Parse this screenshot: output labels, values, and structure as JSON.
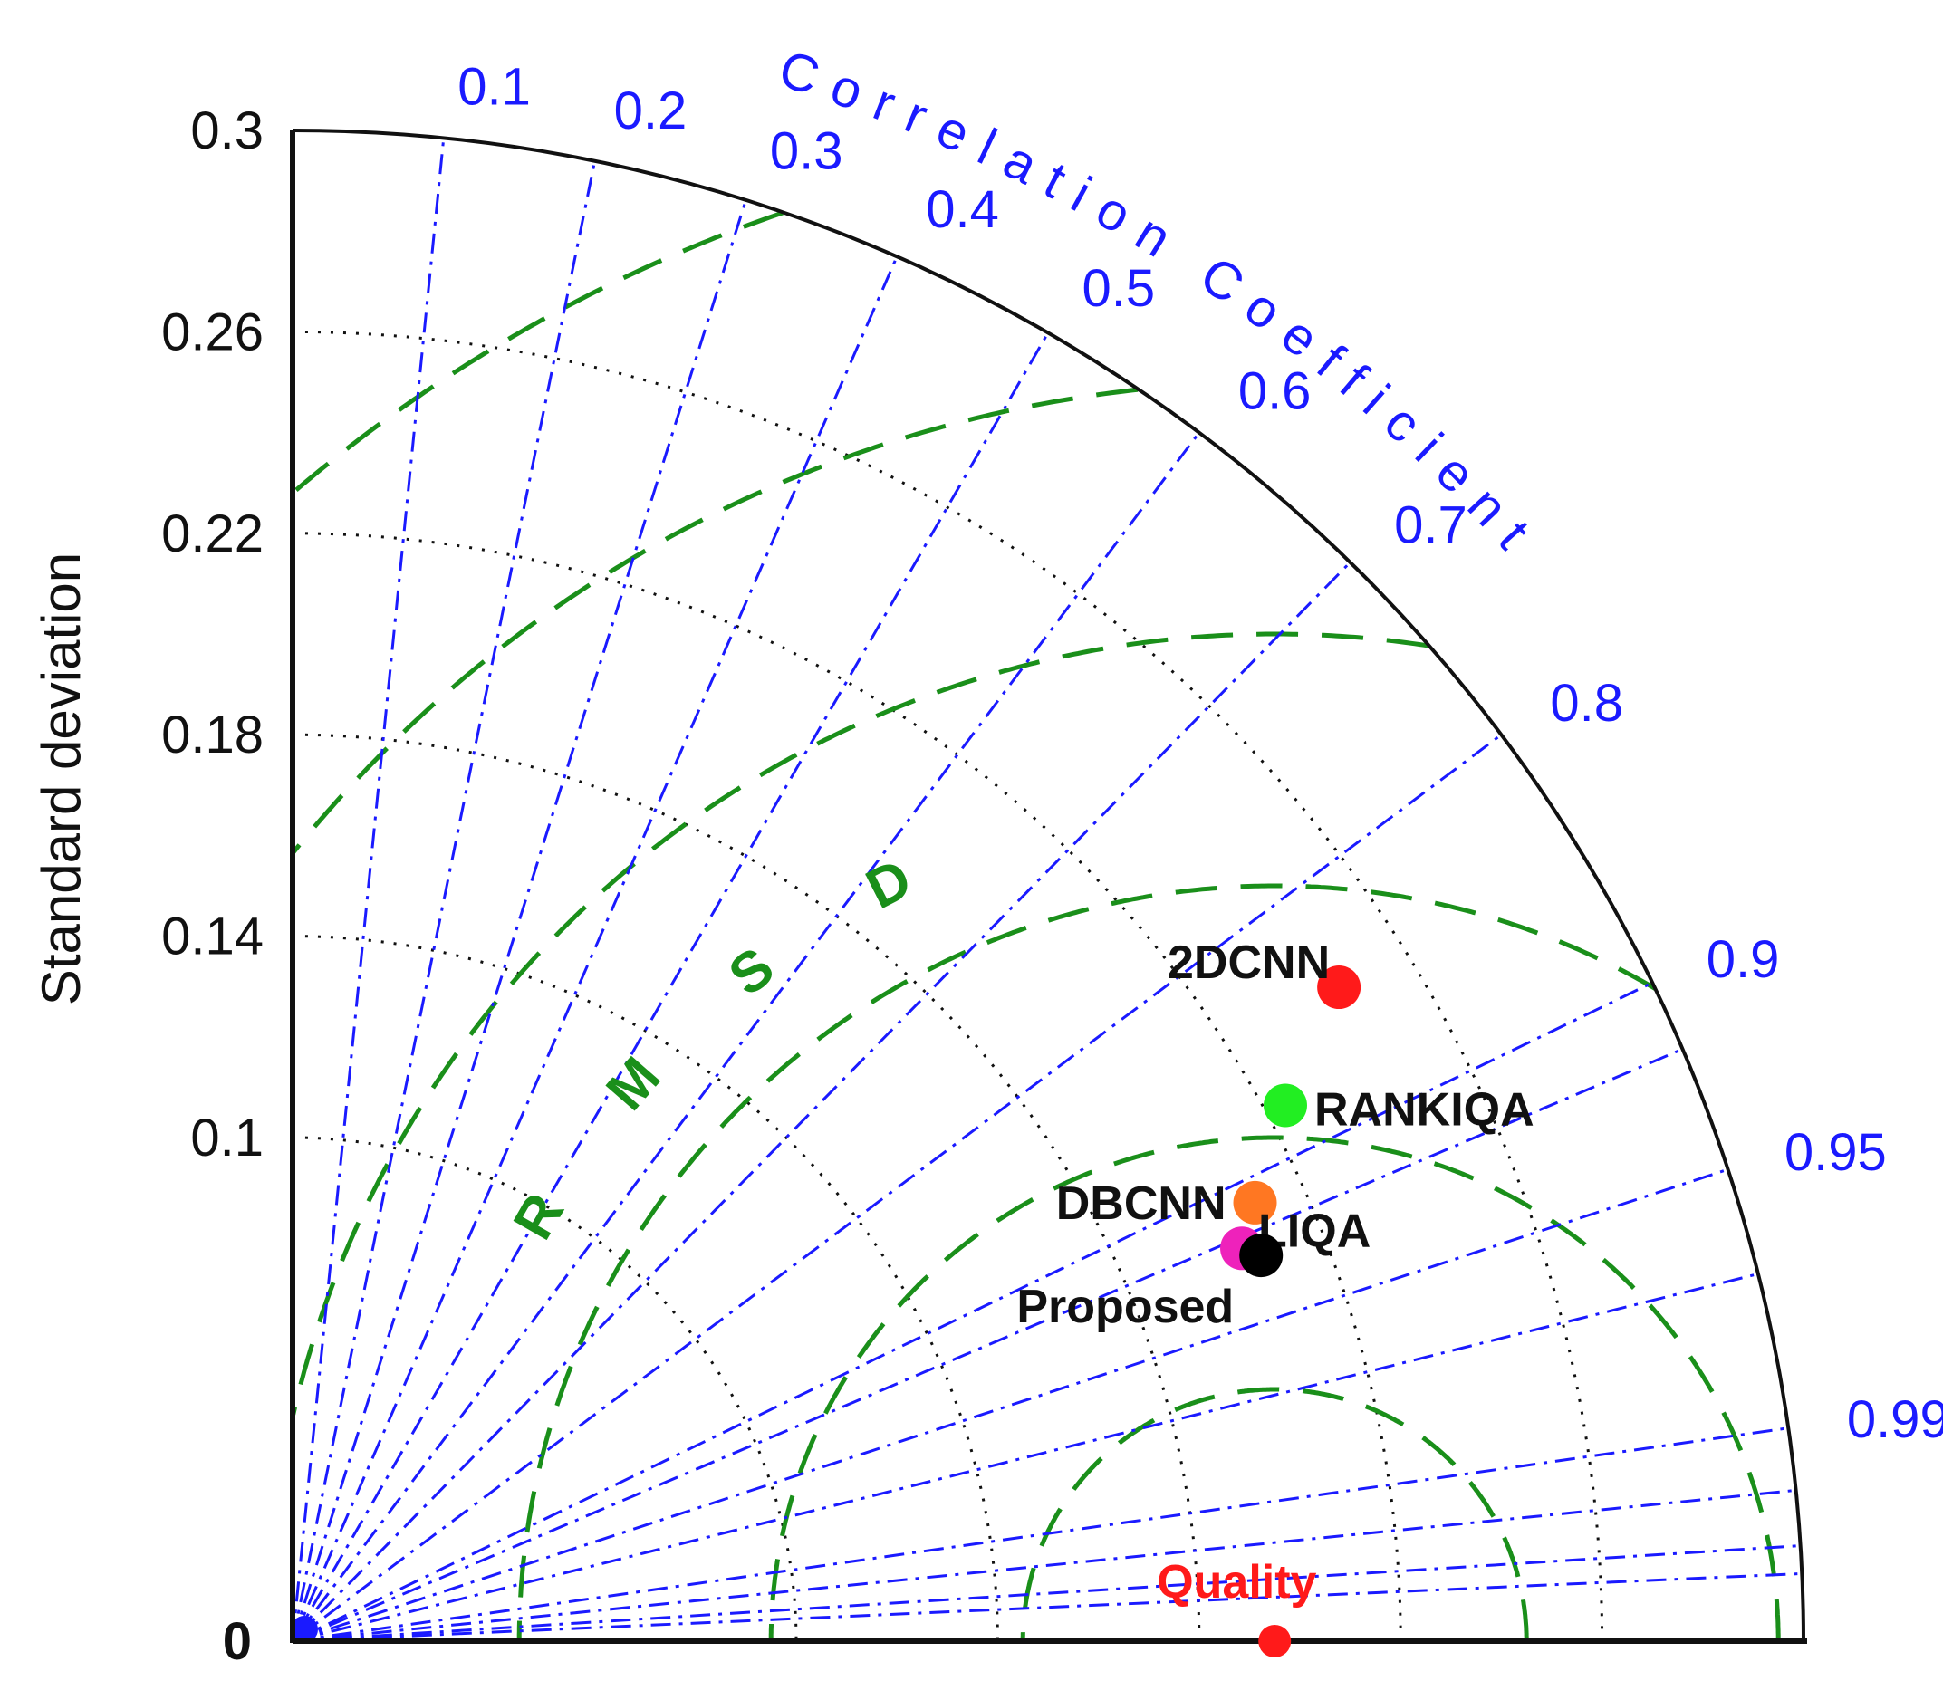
{
  "chart_data": {
    "type": "taylor-diagram",
    "title": "",
    "ylabel": "Standard deviation",
    "correlation_label": "Correlation Coefficient",
    "rmsd_label": "RMSD",
    "std_ticks": [
      0,
      0.1,
      0.14,
      0.18,
      0.22,
      0.26,
      0.3
    ],
    "std_tick_labels": [
      "0",
      "0.1",
      "0.14",
      "0.18",
      "0.22",
      "0.26",
      "0.3"
    ],
    "std_range": [
      0,
      0.3
    ],
    "std_grid_arcs": [
      0.1,
      0.14,
      0.18,
      0.22,
      0.26
    ],
    "correlation_ticks": [
      0.1,
      0.2,
      0.3,
      0.4,
      0.5,
      0.6,
      0.7,
      0.8,
      0.9,
      0.95,
      0.99
    ],
    "correlation_tick_labels": [
      "0.1",
      "0.2",
      "0.3",
      "0.4",
      "0.5",
      "0.6",
      "0.7",
      "0.8",
      "0.9",
      "0.95",
      "0.99"
    ],
    "rmsd_contours": [
      0.05,
      0.1,
      0.15,
      0.2,
      0.25,
      0.3
    ],
    "reference": {
      "name": "Quality",
      "std": 0.195,
      "color": "#ff1a1a"
    },
    "points": [
      {
        "name": "2DCNN",
        "std": 0.245,
        "correlation": 0.848,
        "color": "#ff1a1a"
      },
      {
        "name": "RANKIQA",
        "std": 0.224,
        "correlation": 0.88,
        "color": "#22ee22"
      },
      {
        "name": "DBCNN",
        "std": 0.21,
        "correlation": 0.91,
        "color": "#ff7722"
      },
      {
        "name": "LIQA",
        "std": 0.204,
        "correlation": 0.924,
        "color": "#ee22bb"
      },
      {
        "name": "Proposed",
        "std": 0.207,
        "correlation": 0.929,
        "color": "#000000"
      }
    ],
    "grid": true,
    "colors": {
      "correlation_lines": "#1a1aff",
      "rmsd_contours": "#1a8f1a",
      "std_grid": "#111111",
      "axes": "#111111",
      "labels": "#111111"
    }
  }
}
